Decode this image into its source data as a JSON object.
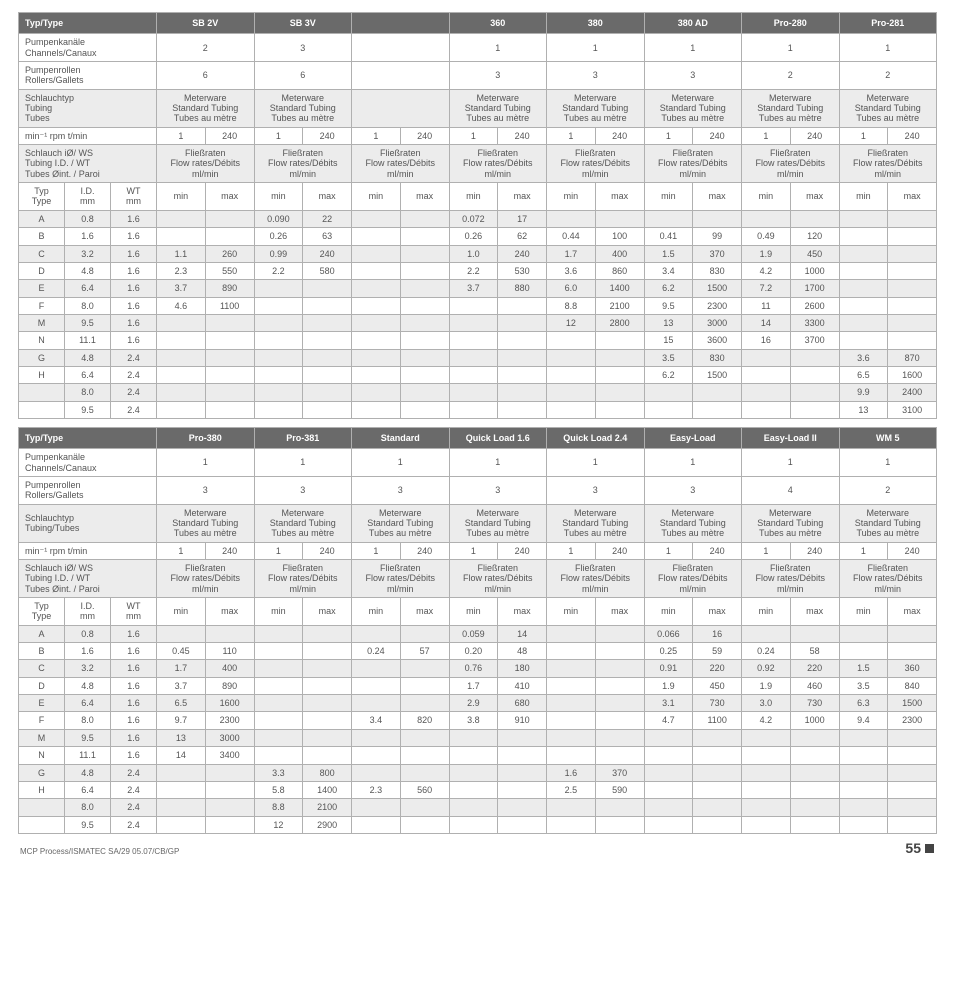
{
  "labels": {
    "typType": "Typ/Type",
    "channels1": "Pumpenkanäle",
    "channels2": "Channels/Canaux",
    "rollers1": "Pumpenrollen",
    "rollers2": "Rollers/Gallets",
    "tubing3a": "Schlauchtyp",
    "tubing3b": "Tubing",
    "tubing3c": "Tubes",
    "tubing2a": "Schlauchtyp",
    "tubing2b": "Tubing/Tubes",
    "meter1": "Meterware",
    "meter2": "Standard Tubing",
    "meter3": "Tubes au mètre",
    "rpm": "min⁻¹   rpm   t/min",
    "idwt1": "Schlauch iØ/ WS",
    "idwt2": "Tubing I.D. / WT",
    "idwt3": "Tubes Øint. / Paroi",
    "flow1": "Fließraten",
    "flow2": "Flow rates/Débits",
    "flow3": "ml/min",
    "typ": "Typ",
    "type": "Type",
    "id": "I.D.",
    "mm": "mm",
    "wt": "WT",
    "min": "min",
    "max": "max",
    "one": "1",
    "r240": "240"
  },
  "t1": {
    "cols": [
      "SB 2V",
      "SB 3V",
      "",
      "360",
      "380",
      "380 AD",
      "Pro-280",
      "Pro-281"
    ],
    "channels": [
      "2",
      "3",
      "",
      "1",
      "1",
      "1",
      "1",
      "1"
    ],
    "rollers": [
      "6",
      "6",
      "",
      "3",
      "3",
      "3",
      "2",
      "2"
    ],
    "meter": [
      true,
      true,
      false,
      true,
      true,
      true,
      true,
      true
    ],
    "rows": [
      {
        "t": "A",
        "id": "0.8",
        "wt": "1.6",
        "c": [
          [
            "",
            ""
          ],
          [
            "0.090",
            "22"
          ],
          [
            "",
            ""
          ],
          [
            "0.072",
            "17"
          ],
          [
            "",
            ""
          ],
          [
            "",
            ""
          ],
          [
            "",
            ""
          ],
          [
            "",
            ""
          ]
        ]
      },
      {
        "t": "B",
        "id": "1.6",
        "wt": "1.6",
        "c": [
          [
            "",
            ""
          ],
          [
            "0.26",
            "63"
          ],
          [
            "",
            ""
          ],
          [
            "0.26",
            "62"
          ],
          [
            "0.44",
            "100"
          ],
          [
            "0.41",
            "99"
          ],
          [
            "0.49",
            "120"
          ],
          [
            "",
            ""
          ]
        ]
      },
      {
        "t": "C",
        "id": "3.2",
        "wt": "1.6",
        "c": [
          [
            "1.1",
            "260"
          ],
          [
            "0.99",
            "240"
          ],
          [
            "",
            ""
          ],
          [
            "1.0",
            "240"
          ],
          [
            "1.7",
            "400"
          ],
          [
            "1.5",
            "370"
          ],
          [
            "1.9",
            "450"
          ],
          [
            "",
            ""
          ]
        ]
      },
      {
        "t": "D",
        "id": "4.8",
        "wt": "1.6",
        "c": [
          [
            "2.3",
            "550"
          ],
          [
            "2.2",
            "580"
          ],
          [
            "",
            ""
          ],
          [
            "2.2",
            "530"
          ],
          [
            "3.6",
            "860"
          ],
          [
            "3.4",
            "830"
          ],
          [
            "4.2",
            "1000"
          ],
          [
            "",
            ""
          ]
        ]
      },
      {
        "t": "E",
        "id": "6.4",
        "wt": "1.6",
        "c": [
          [
            "3.7",
            "890"
          ],
          [
            "",
            ""
          ],
          [
            "",
            ""
          ],
          [
            "3.7",
            "880"
          ],
          [
            "6.0",
            "1400"
          ],
          [
            "6.2",
            "1500"
          ],
          [
            "7.2",
            "1700"
          ],
          [
            "",
            ""
          ]
        ]
      },
      {
        "t": "F",
        "id": "8.0",
        "wt": "1.6",
        "c": [
          [
            "4.6",
            "1100"
          ],
          [
            "",
            ""
          ],
          [
            "",
            ""
          ],
          [
            "",
            ""
          ],
          [
            "8.8",
            "2100"
          ],
          [
            "9.5",
            "2300"
          ],
          [
            "11",
            "2600"
          ],
          [
            "",
            ""
          ]
        ]
      },
      {
        "t": "M",
        "id": "9.5",
        "wt": "1.6",
        "c": [
          [
            "",
            ""
          ],
          [
            "",
            ""
          ],
          [
            "",
            ""
          ],
          [
            "",
            ""
          ],
          [
            "12",
            "2800"
          ],
          [
            "13",
            "3000"
          ],
          [
            "14",
            "3300"
          ],
          [
            "",
            ""
          ]
        ]
      },
      {
        "t": "N",
        "id": "11.1",
        "wt": "1.6",
        "c": [
          [
            "",
            ""
          ],
          [
            "",
            ""
          ],
          [
            "",
            ""
          ],
          [
            "",
            ""
          ],
          [
            "",
            ""
          ],
          [
            "15",
            "3600"
          ],
          [
            "16",
            "3700"
          ],
          [
            "",
            ""
          ]
        ]
      },
      {
        "t": "G",
        "id": "4.8",
        "wt": "2.4",
        "c": [
          [
            "",
            ""
          ],
          [
            "",
            ""
          ],
          [
            "",
            ""
          ],
          [
            "",
            ""
          ],
          [
            "",
            ""
          ],
          [
            "3.5",
            "830"
          ],
          [
            "",
            ""
          ],
          [
            "3.6",
            "870"
          ]
        ]
      },
      {
        "t": "H",
        "id": "6.4",
        "wt": "2.4",
        "c": [
          [
            "",
            ""
          ],
          [
            "",
            ""
          ],
          [
            "",
            ""
          ],
          [
            "",
            ""
          ],
          [
            "",
            ""
          ],
          [
            "6.2",
            "1500"
          ],
          [
            "",
            ""
          ],
          [
            "6.5",
            "1600"
          ]
        ]
      },
      {
        "t": "",
        "id": "8.0",
        "wt": "2.4",
        "c": [
          [
            "",
            ""
          ],
          [
            "",
            ""
          ],
          [
            "",
            ""
          ],
          [
            "",
            ""
          ],
          [
            "",
            ""
          ],
          [
            "",
            ""
          ],
          [
            "",
            ""
          ],
          [
            "9.9",
            "2400"
          ]
        ]
      },
      {
        "t": "",
        "id": "9.5",
        "wt": "2.4",
        "c": [
          [
            "",
            ""
          ],
          [
            "",
            ""
          ],
          [
            "",
            ""
          ],
          [
            "",
            ""
          ],
          [
            "",
            ""
          ],
          [
            "",
            ""
          ],
          [
            "",
            ""
          ],
          [
            "13",
            "3100"
          ]
        ]
      }
    ]
  },
  "t2": {
    "cols": [
      "Pro-380",
      "Pro-381",
      "Standard",
      "Quick Load  1.6",
      "Quick Load  2.4",
      "Easy-Load",
      "Easy-Load  II",
      "WM 5"
    ],
    "channels": [
      "1",
      "1",
      "1",
      "1",
      "1",
      "1",
      "1",
      "1"
    ],
    "rollers": [
      "3",
      "3",
      "3",
      "3",
      "3",
      "3",
      "4",
      "2"
    ],
    "meter": [
      true,
      true,
      true,
      true,
      true,
      true,
      true,
      true
    ],
    "rows": [
      {
        "t": "A",
        "id": "0.8",
        "wt": "1.6",
        "c": [
          [
            "",
            ""
          ],
          [
            "",
            ""
          ],
          [
            "",
            ""
          ],
          [
            "0.059",
            "14"
          ],
          [
            "",
            ""
          ],
          [
            "0.066",
            "16"
          ],
          [
            "",
            ""
          ],
          [
            "",
            ""
          ]
        ]
      },
      {
        "t": "B",
        "id": "1.6",
        "wt": "1.6",
        "c": [
          [
            "0.45",
            "110"
          ],
          [
            "",
            ""
          ],
          [
            "0.24",
            "57"
          ],
          [
            "0.20",
            "48"
          ],
          [
            "",
            ""
          ],
          [
            "0.25",
            "59"
          ],
          [
            "0.24",
            "58"
          ],
          [
            "",
            ""
          ]
        ]
      },
      {
        "t": "C",
        "id": "3.2",
        "wt": "1.6",
        "c": [
          [
            "1.7",
            "400"
          ],
          [
            "",
            ""
          ],
          [
            "",
            ""
          ],
          [
            "0.76",
            "180"
          ],
          [
            "",
            ""
          ],
          [
            "0.91",
            "220"
          ],
          [
            "0.92",
            "220"
          ],
          [
            "1.5",
            "360"
          ]
        ]
      },
      {
        "t": "D",
        "id": "4.8",
        "wt": "1.6",
        "c": [
          [
            "3.7",
            "890"
          ],
          [
            "",
            ""
          ],
          [
            "",
            ""
          ],
          [
            "1.7",
            "410"
          ],
          [
            "",
            ""
          ],
          [
            "1.9",
            "450"
          ],
          [
            "1.9",
            "460"
          ],
          [
            "3.5",
            "840"
          ]
        ]
      },
      {
        "t": "E",
        "id": "6.4",
        "wt": "1.6",
        "c": [
          [
            "6.5",
            "1600"
          ],
          [
            "",
            ""
          ],
          [
            "",
            ""
          ],
          [
            "2.9",
            "680"
          ],
          [
            "",
            ""
          ],
          [
            "3.1",
            "730"
          ],
          [
            "3.0",
            "730"
          ],
          [
            "6.3",
            "1500"
          ]
        ]
      },
      {
        "t": "F",
        "id": "8.0",
        "wt": "1.6",
        "c": [
          [
            "9.7",
            "2300"
          ],
          [
            "",
            ""
          ],
          [
            "3.4",
            "820"
          ],
          [
            "3.8",
            "910"
          ],
          [
            "",
            ""
          ],
          [
            "4.7",
            "1100"
          ],
          [
            "4.2",
            "1000"
          ],
          [
            "9.4",
            "2300"
          ]
        ]
      },
      {
        "t": "M",
        "id": "9.5",
        "wt": "1.6",
        "c": [
          [
            "13",
            "3000"
          ],
          [
            "",
            ""
          ],
          [
            "",
            ""
          ],
          [
            "",
            ""
          ],
          [
            "",
            ""
          ],
          [
            "",
            ""
          ],
          [
            "",
            ""
          ],
          [
            "",
            ""
          ]
        ]
      },
      {
        "t": "N",
        "id": "11.1",
        "wt": "1.6",
        "c": [
          [
            "14",
            "3400"
          ],
          [
            "",
            ""
          ],
          [
            "",
            ""
          ],
          [
            "",
            ""
          ],
          [
            "",
            ""
          ],
          [
            "",
            ""
          ],
          [
            "",
            ""
          ],
          [
            "",
            ""
          ]
        ]
      },
      {
        "t": "G",
        "id": "4.8",
        "wt": "2.4",
        "c": [
          [
            "",
            ""
          ],
          [
            "3.3",
            "800"
          ],
          [
            "",
            ""
          ],
          [
            "",
            ""
          ],
          [
            "1.6",
            "370"
          ],
          [
            "",
            ""
          ],
          [
            "",
            ""
          ],
          [
            "",
            ""
          ]
        ]
      },
      {
        "t": "H",
        "id": "6.4",
        "wt": "2.4",
        "c": [
          [
            "",
            ""
          ],
          [
            "5.8",
            "1400"
          ],
          [
            "2.3",
            "560"
          ],
          [
            "",
            ""
          ],
          [
            "2.5",
            "590"
          ],
          [
            "",
            ""
          ],
          [
            "",
            ""
          ],
          [
            "",
            ""
          ]
        ]
      },
      {
        "t": "",
        "id": "8.0",
        "wt": "2.4",
        "c": [
          [
            "",
            ""
          ],
          [
            "8.8",
            "2100"
          ],
          [
            "",
            ""
          ],
          [
            "",
            ""
          ],
          [
            "",
            ""
          ],
          [
            "",
            ""
          ],
          [
            "",
            ""
          ],
          [
            "",
            ""
          ]
        ]
      },
      {
        "t": "",
        "id": "9.5",
        "wt": "2.4",
        "c": [
          [
            "",
            ""
          ],
          [
            "12",
            "2900"
          ],
          [
            "",
            ""
          ],
          [
            "",
            ""
          ],
          [
            "",
            ""
          ],
          [
            "",
            ""
          ],
          [
            "",
            ""
          ],
          [
            "",
            ""
          ]
        ]
      }
    ]
  },
  "footer": {
    "left": "MCP Process/ISMATEC SA/29 05.07/CB/GP",
    "page": "55"
  }
}
